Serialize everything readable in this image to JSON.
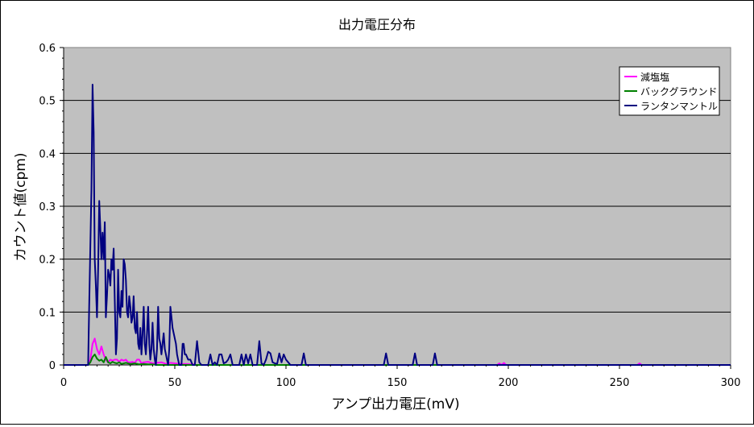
{
  "chart_data": {
    "type": "line",
    "title": "出力電圧分布",
    "xlabel": "アンプ出力電圧(mV)",
    "ylabel": "カウント値(cpm)",
    "xlim": [
      0,
      300
    ],
    "ylim": [
      0,
      0.6
    ],
    "xticks": [
      0,
      50,
      100,
      150,
      200,
      250,
      300
    ],
    "yticks": [
      0,
      0.1,
      0.2,
      0.3,
      0.4,
      0.5,
      0.6
    ],
    "grid": "horizontal",
    "plot_background": "#c0c0c0",
    "legend_position": "top-right",
    "series": [
      {
        "name": "減塩塩",
        "color": "#ff00ff",
        "points": [
          [
            0,
            0
          ],
          [
            11,
            0
          ],
          [
            12,
            0.01
          ],
          [
            13,
            0.04
          ],
          [
            14,
            0.05
          ],
          [
            15,
            0.03
          ],
          [
            16,
            0.02
          ],
          [
            17,
            0.035
          ],
          [
            18,
            0.02
          ],
          [
            19,
            0.01
          ],
          [
            20,
            0.005
          ],
          [
            21,
            0.01
          ],
          [
            22,
            0.008
          ],
          [
            23,
            0.01
          ],
          [
            24,
            0.01
          ],
          [
            25,
            0.006
          ],
          [
            26,
            0.01
          ],
          [
            27,
            0.008
          ],
          [
            28,
            0.01
          ],
          [
            29,
            0.005
          ],
          [
            30,
            0.005
          ],
          [
            31,
            0.006
          ],
          [
            32,
            0.004
          ],
          [
            33,
            0.01
          ],
          [
            34,
            0.01
          ],
          [
            35,
            0.003
          ],
          [
            36,
            0.005
          ],
          [
            38,
            0.006
          ],
          [
            40,
            0.003
          ],
          [
            42,
            0.004
          ],
          [
            44,
            0.005
          ],
          [
            46,
            0.002
          ],
          [
            48,
            0.004
          ],
          [
            50,
            0.003
          ],
          [
            52,
            0.002
          ],
          [
            55,
            0.002
          ],
          [
            58,
            0.001
          ],
          [
            60,
            0
          ],
          [
            195,
            0
          ],
          [
            196,
            0.003
          ],
          [
            197,
            0
          ],
          [
            198,
            0.004
          ],
          [
            199,
            0
          ],
          [
            258,
            0
          ],
          [
            259,
            0.003
          ],
          [
            260,
            0
          ],
          [
            300,
            0
          ]
        ]
      },
      {
        "name": "バックグラウンド",
        "color": "#008000",
        "points": [
          [
            0,
            0
          ],
          [
            11,
            0
          ],
          [
            12,
            0.005
          ],
          [
            13,
            0.015
          ],
          [
            14,
            0.02
          ],
          [
            15,
            0.012
          ],
          [
            16,
            0.008
          ],
          [
            17,
            0.01
          ],
          [
            18,
            0.005
          ],
          [
            19,
            0.015
          ],
          [
            20,
            0.005
          ],
          [
            21,
            0.003
          ],
          [
            22,
            0.006
          ],
          [
            23,
            0.004
          ],
          [
            24,
            0.003
          ],
          [
            25,
            0.005
          ],
          [
            26,
            0.002
          ],
          [
            28,
            0.004
          ],
          [
            30,
            0.002
          ],
          [
            32,
            0.003
          ],
          [
            34,
            0.001
          ],
          [
            36,
            0.002
          ],
          [
            38,
            0.001
          ],
          [
            40,
            0.001
          ],
          [
            42,
            0
          ],
          [
            300,
            0
          ]
        ]
      },
      {
        "name": "ランタンマントル",
        "color": "#000080",
        "points": [
          [
            0,
            0
          ],
          [
            11,
            0
          ],
          [
            11.5,
            0.11
          ],
          [
            12,
            0.22
          ],
          [
            12.5,
            0.33
          ],
          [
            13,
            0.53
          ],
          [
            13.5,
            0.44
          ],
          [
            14,
            0.2
          ],
          [
            14.5,
            0.15
          ],
          [
            15,
            0.09
          ],
          [
            15.5,
            0.18
          ],
          [
            16,
            0.31
          ],
          [
            16.5,
            0.26
          ],
          [
            17,
            0.2
          ],
          [
            17.5,
            0.25
          ],
          [
            18,
            0.2
          ],
          [
            18.5,
            0.27
          ],
          [
            19,
            0.09
          ],
          [
            19.5,
            0.13
          ],
          [
            20,
            0.18
          ],
          [
            20.5,
            0.17
          ],
          [
            21,
            0.15
          ],
          [
            21.5,
            0.2
          ],
          [
            22,
            0.18
          ],
          [
            22.5,
            0.22
          ],
          [
            23,
            0.12
          ],
          [
            23.5,
            0.02
          ],
          [
            24,
            0.05
          ],
          [
            24.5,
            0.18
          ],
          [
            25,
            0.1
          ],
          [
            25.5,
            0.09
          ],
          [
            26,
            0.14
          ],
          [
            26.5,
            0.11
          ],
          [
            27,
            0.2
          ],
          [
            27.5,
            0.19
          ],
          [
            28,
            0.16
          ],
          [
            28.5,
            0.1
          ],
          [
            29,
            0.09
          ],
          [
            29.5,
            0.13
          ],
          [
            30,
            0.11
          ],
          [
            30.5,
            0.08
          ],
          [
            31,
            0.09
          ],
          [
            31.5,
            0.13
          ],
          [
            32,
            0.07
          ],
          [
            32.5,
            0.06
          ],
          [
            33,
            0.1
          ],
          [
            33.5,
            0.04
          ],
          [
            34,
            0.03
          ],
          [
            34.5,
            0.07
          ],
          [
            35,
            0.02
          ],
          [
            35.5,
            0.06
          ],
          [
            36,
            0.11
          ],
          [
            36.5,
            0.04
          ],
          [
            37,
            0.02
          ],
          [
            37.5,
            0.06
          ],
          [
            38,
            0.11
          ],
          [
            38.5,
            0.04
          ],
          [
            39,
            0.01
          ],
          [
            39.5,
            0.03
          ],
          [
            40,
            0.08
          ],
          [
            40.5,
            0.03
          ],
          [
            41,
            0.01
          ],
          [
            41.5,
            0
          ],
          [
            42,
            0.03
          ],
          [
            42.5,
            0.11
          ],
          [
            43,
            0.05
          ],
          [
            43.5,
            0.04
          ],
          [
            44,
            0.02
          ],
          [
            44.5,
            0.04
          ],
          [
            45,
            0.06
          ],
          [
            45.5,
            0.03
          ],
          [
            46,
            0.02
          ],
          [
            46.5,
            0.01
          ],
          [
            47,
            0
          ],
          [
            47.5,
            0.03
          ],
          [
            48,
            0.11
          ],
          [
            48.5,
            0.09
          ],
          [
            49,
            0.07
          ],
          [
            49.5,
            0.06
          ],
          [
            50,
            0.05
          ],
          [
            50.5,
            0.04
          ],
          [
            51,
            0.02
          ],
          [
            51.5,
            0.01
          ],
          [
            52,
            0
          ],
          [
            53,
            0
          ],
          [
            53.5,
            0.04
          ],
          [
            54,
            0.04
          ],
          [
            54.5,
            0.02
          ],
          [
            55,
            0.02
          ],
          [
            56,
            0.01
          ],
          [
            57,
            0.01
          ],
          [
            58,
            0
          ],
          [
            59,
            0
          ],
          [
            60,
            0.045
          ],
          [
            61,
            0.005
          ],
          [
            62,
            0
          ],
          [
            65,
            0
          ],
          [
            66,
            0.02
          ],
          [
            67,
            0
          ],
          [
            68,
            0.005
          ],
          [
            69,
            0
          ],
          [
            70,
            0.02
          ],
          [
            71,
            0.02
          ],
          [
            72,
            0.003
          ],
          [
            73,
            0.005
          ],
          [
            74,
            0.01
          ],
          [
            75,
            0.02
          ],
          [
            76,
            0
          ],
          [
            79,
            0
          ],
          [
            80,
            0.02
          ],
          [
            81,
            0
          ],
          [
            82,
            0.02
          ],
          [
            83,
            0.003
          ],
          [
            84,
            0.02
          ],
          [
            85,
            0
          ],
          [
            87,
            0
          ],
          [
            88,
            0.045
          ],
          [
            89,
            0.003
          ],
          [
            90,
            0
          ],
          [
            91,
            0.01
          ],
          [
            92,
            0.025
          ],
          [
            93,
            0.022
          ],
          [
            94,
            0.005
          ],
          [
            95,
            0.003
          ],
          [
            96,
            0.002
          ],
          [
            97,
            0.022
          ],
          [
            98,
            0.005
          ],
          [
            99,
            0.02
          ],
          [
            100,
            0.01
          ],
          [
            101,
            0.005
          ],
          [
            102,
            0
          ],
          [
            107,
            0
          ],
          [
            108,
            0.022
          ],
          [
            109,
            0
          ],
          [
            144,
            0
          ],
          [
            145,
            0.022
          ],
          [
            146,
            0
          ],
          [
            157,
            0
          ],
          [
            158,
            0.022
          ],
          [
            159,
            0
          ],
          [
            166,
            0
          ],
          [
            167,
            0.022
          ],
          [
            168,
            0
          ],
          [
            300,
            0
          ]
        ]
      }
    ]
  }
}
